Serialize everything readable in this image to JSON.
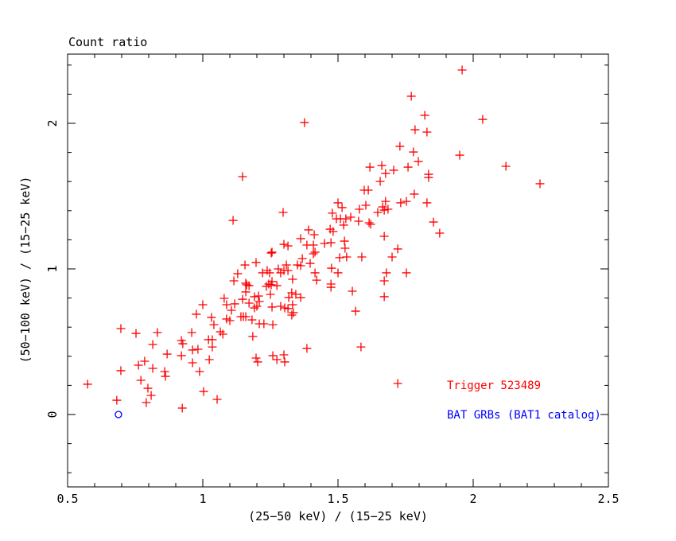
{
  "window": {
    "background": "#ffffff"
  },
  "chart_data": {
    "type": "scatter",
    "title": "Count ratio",
    "xlabel": "(25−50 keV) / (15−25 keV)",
    "ylabel": "(50−100 keV) / (15−25 keV)",
    "xlim": [
      0.5,
      2.5
    ],
    "ylim": [
      -0.5,
      2.5
    ],
    "grid": false,
    "axes_color": "#000000",
    "x_axis": {
      "major_ticks": [
        0.5,
        1,
        1.5,
        2,
        2.5
      ],
      "tick_labels": [
        "0.5",
        "1",
        "1.5",
        "2",
        "2.5"
      ],
      "minor_step": 0.1
    },
    "y_axis": {
      "major_ticks": [
        0,
        1,
        2
      ],
      "tick_labels": [
        "0",
        "1",
        "2"
      ],
      "minor_step": 0.2
    },
    "legend": {
      "position": "lower-right",
      "entries": [
        "Trigger 523489",
        "BAT GRBs (BAT1 catalog)"
      ]
    },
    "series": [
      {
        "name": "Trigger 523489",
        "marker": "plus",
        "color": "#ff0000",
        "points": [
          [
            0.574,
            0.208
          ],
          [
            0.697,
            0.59
          ],
          [
            0.682,
            0.098
          ],
          [
            0.697,
            0.301
          ],
          [
            0.753,
            0.557
          ],
          [
            0.762,
            0.339
          ],
          [
            0.771,
            0.235
          ],
          [
            0.785,
            0.366
          ],
          [
            0.791,
            0.082
          ],
          [
            0.797,
            0.18
          ],
          [
            0.809,
            0.131
          ],
          [
            0.815,
            0.481
          ],
          [
            0.815,
            0.317
          ],
          [
            0.832,
            0.563
          ],
          [
            0.859,
            0.295
          ],
          [
            0.862,
            0.262
          ],
          [
            0.868,
            0.415
          ],
          [
            0.921,
            0.508
          ],
          [
            0.926,
            0.486
          ],
          [
            0.924,
            0.044
          ],
          [
            0.921,
            0.404
          ],
          [
            0.959,
            0.563
          ],
          [
            0.962,
            0.443
          ],
          [
            0.962,
            0.355
          ],
          [
            0.976,
            0.689
          ],
          [
            0.982,
            0.448
          ],
          [
            0.988,
            0.295
          ],
          [
            1.0,
            0.754
          ],
          [
            1.003,
            0.158
          ],
          [
            1.021,
            0.514
          ],
          [
            1.024,
            0.377
          ],
          [
            1.032,
            0.667
          ],
          [
            1.035,
            0.514
          ],
          [
            1.035,
            0.464
          ],
          [
            1.041,
            0.617
          ],
          [
            1.053,
            0.104
          ],
          [
            1.065,
            0.568
          ],
          [
            1.074,
            0.552
          ],
          [
            1.079,
            0.798
          ],
          [
            1.088,
            0.754
          ],
          [
            1.088,
            0.656
          ],
          [
            1.1,
            0.645
          ],
          [
            1.106,
            0.716
          ],
          [
            1.118,
            0.76
          ],
          [
            1.185,
            0.536
          ],
          [
            1.197,
            0.388
          ],
          [
            1.203,
            0.361
          ],
          [
            1.259,
            0.404
          ],
          [
            1.274,
            0.377
          ],
          [
            1.3,
            0.41
          ],
          [
            1.303,
            0.361
          ],
          [
            1.162,
            0.891
          ],
          [
            1.171,
            0.885
          ],
          [
            1.235,
            0.88
          ],
          [
            1.253,
            0.891
          ],
          [
            1.274,
            0.885
          ],
          [
            1.159,
            0.842
          ],
          [
            1.25,
            0.825
          ],
          [
            1.147,
            0.792
          ],
          [
            1.191,
            0.809
          ],
          [
            1.206,
            0.814
          ],
          [
            1.318,
            0.803
          ],
          [
            1.344,
            0.825
          ],
          [
            1.171,
            0.765
          ],
          [
            1.209,
            0.776
          ],
          [
            1.2,
            0.743
          ],
          [
            1.191,
            0.732
          ],
          [
            1.256,
            0.738
          ],
          [
            1.288,
            0.743
          ],
          [
            1.303,
            0.732
          ],
          [
            1.315,
            0.727
          ],
          [
            1.329,
            0.683
          ],
          [
            1.141,
            0.672
          ],
          [
            1.15,
            0.672
          ],
          [
            1.159,
            0.672
          ],
          [
            1.182,
            0.65
          ],
          [
            1.209,
            0.623
          ],
          [
            1.226,
            0.623
          ],
          [
            1.259,
            0.617
          ],
          [
            1.329,
            0.836
          ],
          [
            1.362,
            0.803
          ],
          [
            1.332,
            0.754
          ],
          [
            1.335,
            0.699
          ],
          [
            1.474,
            0.874
          ],
          [
            1.553,
            0.847
          ],
          [
            1.671,
            0.809
          ],
          [
            1.565,
            0.71
          ],
          [
            1.385,
            0.454
          ],
          [
            1.585,
            0.464
          ],
          [
            1.721,
            0.213
          ],
          [
            1.147,
            1.634
          ],
          [
            1.112,
            1.333
          ],
          [
            1.297,
            1.388
          ],
          [
            1.3,
            1.169
          ],
          [
            1.315,
            1.158
          ],
          [
            1.253,
            1.109
          ],
          [
            1.156,
            1.027
          ],
          [
            1.197,
            1.044
          ],
          [
            1.129,
            0.967
          ],
          [
            1.115,
            0.918
          ],
          [
            1.159,
            0.902
          ],
          [
            1.221,
            0.973
          ],
          [
            1.238,
            0.989
          ],
          [
            1.247,
            0.973
          ],
          [
            1.256,
            0.913
          ],
          [
            1.244,
            0.896
          ],
          [
            1.256,
            1.115
          ],
          [
            1.279,
            1.0
          ],
          [
            1.288,
            0.973
          ],
          [
            1.3,
            0.989
          ],
          [
            1.309,
            1.027
          ],
          [
            1.315,
            0.989
          ],
          [
            1.785,
            1.956
          ],
          [
            1.829,
            1.94
          ],
          [
            1.729,
            1.842
          ],
          [
            1.779,
            1.803
          ],
          [
            1.95,
            1.781
          ],
          [
            1.797,
            1.738
          ],
          [
            2.121,
            1.705
          ],
          [
            1.618,
            1.699
          ],
          [
            1.662,
            1.71
          ],
          [
            1.759,
            1.699
          ],
          [
            1.706,
            1.678
          ],
          [
            1.676,
            1.656
          ],
          [
            1.835,
            1.65
          ],
          [
            1.835,
            1.628
          ],
          [
            1.656,
            1.601
          ],
          [
            1.597,
            1.541
          ],
          [
            1.612,
            1.541
          ],
          [
            1.782,
            1.514
          ],
          [
            1.5,
            1.454
          ],
          [
            1.676,
            1.464
          ],
          [
            1.732,
            1.454
          ],
          [
            1.753,
            1.464
          ],
          [
            1.515,
            1.421
          ],
          [
            1.603,
            1.437
          ],
          [
            1.829,
            1.454
          ],
          [
            1.579,
            1.41
          ],
          [
            1.665,
            1.426
          ],
          [
            1.647,
            1.388
          ],
          [
            1.671,
            1.404
          ],
          [
            1.685,
            1.41
          ],
          [
            1.479,
            1.383
          ],
          [
            1.494,
            1.344
          ],
          [
            1.509,
            1.344
          ],
          [
            1.529,
            1.344
          ],
          [
            1.547,
            1.355
          ],
          [
            1.576,
            1.328
          ],
          [
            1.615,
            1.317
          ],
          [
            1.621,
            1.306
          ],
          [
            1.521,
            1.301
          ],
          [
            1.853,
            1.322
          ],
          [
            1.391,
            1.268
          ],
          [
            1.471,
            1.273
          ],
          [
            1.482,
            1.257
          ],
          [
            1.412,
            1.235
          ],
          [
            1.876,
            1.246
          ],
          [
            1.362,
            1.208
          ],
          [
            1.45,
            1.175
          ],
          [
            1.474,
            1.18
          ],
          [
            1.385,
            1.164
          ],
          [
            1.409,
            1.164
          ],
          [
            1.671,
            1.224
          ],
          [
            1.524,
            1.191
          ],
          [
            1.526,
            1.142
          ],
          [
            1.415,
            1.115
          ],
          [
            1.409,
            1.104
          ],
          [
            1.506,
            1.077
          ],
          [
            1.532,
            1.082
          ],
          [
            1.588,
            1.082
          ],
          [
            1.721,
            1.137
          ],
          [
            1.7,
            1.082
          ],
          [
            1.368,
            1.071
          ],
          [
            1.397,
            1.038
          ],
          [
            1.35,
            1.027
          ],
          [
            1.362,
            1.022
          ],
          [
            1.476,
            1.005
          ],
          [
            1.5,
            0.973
          ],
          [
            1.415,
            0.973
          ],
          [
            1.421,
            0.923
          ],
          [
            1.332,
            0.929
          ],
          [
            1.679,
            0.973
          ],
          [
            1.753,
            0.973
          ],
          [
            1.671,
            0.918
          ],
          [
            1.474,
            0.896
          ],
          [
            1.959,
            2.366
          ],
          [
            1.771,
            2.186
          ],
          [
            1.821,
            2.055
          ],
          [
            2.035,
            2.027
          ],
          [
            1.376,
            2.005
          ],
          [
            2.247,
            1.585
          ]
        ]
      },
      {
        "name": "BAT GRBs (BAT1 catalog)",
        "marker": "circle",
        "color": "#0000ff",
        "points": [
          [
            0.688,
            0.0
          ]
        ]
      }
    ]
  }
}
